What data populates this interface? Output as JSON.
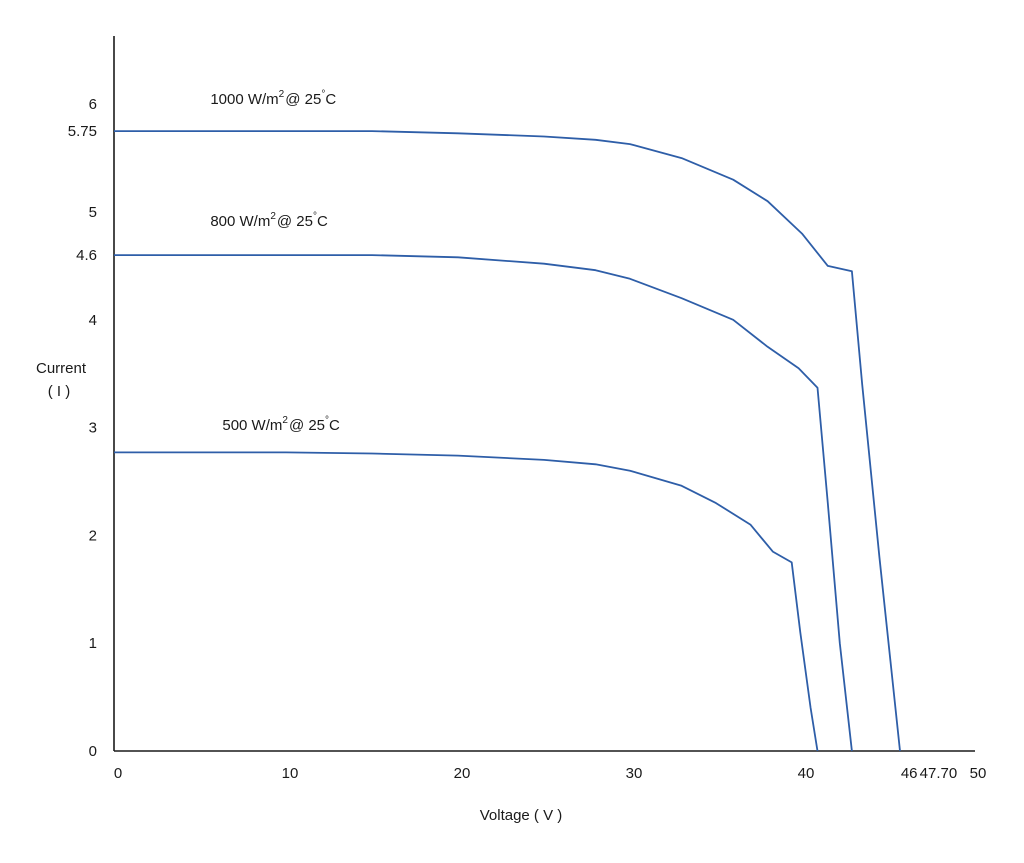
{
  "chart_data": {
    "type": "line",
    "title": "",
    "xlabel": "Voltage ( V )",
    "ylabel": [
      "Current",
      "( I )"
    ],
    "xlim": [
      0,
      50
    ],
    "ylim": [
      0,
      6.6
    ],
    "grid": false,
    "legend": "none",
    "x_ticks": [
      {
        "value": 0,
        "label": "0"
      },
      {
        "value": 10,
        "label": "10"
      },
      {
        "value": 20,
        "label": "20"
      },
      {
        "value": 30,
        "label": "30"
      },
      {
        "value": 40,
        "label": "40"
      },
      {
        "value": 46,
        "label": "46"
      },
      {
        "value": 47.7,
        "label": "47.70"
      },
      {
        "value": 50,
        "label": "50"
      }
    ],
    "y_ticks": [
      {
        "value": 0,
        "label": "0"
      },
      {
        "value": 1,
        "label": "1"
      },
      {
        "value": 2,
        "label": "2"
      },
      {
        "value": 3,
        "label": "3"
      },
      {
        "value": 4,
        "label": "4"
      },
      {
        "value": 4.6,
        "label": "4.6"
      },
      {
        "value": 5,
        "label": "5"
      },
      {
        "value": 5.75,
        "label": "5.75"
      },
      {
        "value": 6,
        "label": "6"
      }
    ],
    "series": [
      {
        "label_parts": [
          "1000 W/m",
          "2",
          "@ 25",
          "°",
          "C"
        ],
        "label_at": [
          5.6,
          6.0
        ],
        "color": "#2e5ea8",
        "points": [
          [
            0,
            5.75
          ],
          [
            5,
            5.75
          ],
          [
            10,
            5.75
          ],
          [
            15,
            5.75
          ],
          [
            20,
            5.73
          ],
          [
            25,
            5.7
          ],
          [
            28,
            5.67
          ],
          [
            30,
            5.63
          ],
          [
            33,
            5.5
          ],
          [
            36,
            5.3
          ],
          [
            38,
            5.1
          ],
          [
            40,
            4.8
          ],
          [
            41.5,
            4.5
          ],
          [
            42.9,
            4.45
          ],
          [
            43.5,
            3.4
          ],
          [
            44.5,
            1.8
          ],
          [
            45.7,
            0
          ]
        ]
      },
      {
        "label_parts": [
          "800 W/m",
          "2",
          "@ 25",
          "°",
          "C"
        ],
        "label_at": [
          5.6,
          4.87
        ],
        "color": "#2e5ea8",
        "points": [
          [
            0,
            4.6
          ],
          [
            5,
            4.6
          ],
          [
            10,
            4.6
          ],
          [
            15,
            4.6
          ],
          [
            20,
            4.58
          ],
          [
            25,
            4.52
          ],
          [
            28,
            4.46
          ],
          [
            30,
            4.38
          ],
          [
            33,
            4.2
          ],
          [
            36,
            4.0
          ],
          [
            38,
            3.75
          ],
          [
            39.8,
            3.55
          ],
          [
            40.9,
            3.37
          ],
          [
            41.5,
            2.3
          ],
          [
            42.2,
            1.0
          ],
          [
            42.9,
            0
          ]
        ]
      },
      {
        "label_parts": [
          "500 W/m",
          "2",
          "@ 25",
          "°",
          "C"
        ],
        "label_at": [
          6.3,
          2.98
        ],
        "color": "#2e5ea8",
        "points": [
          [
            0,
            2.77
          ],
          [
            5,
            2.77
          ],
          [
            10,
            2.77
          ],
          [
            15,
            2.76
          ],
          [
            20,
            2.74
          ],
          [
            25,
            2.7
          ],
          [
            28,
            2.66
          ],
          [
            30,
            2.6
          ],
          [
            33,
            2.46
          ],
          [
            35,
            2.3
          ],
          [
            37,
            2.1
          ],
          [
            38.3,
            1.85
          ],
          [
            39.4,
            1.75
          ],
          [
            39.9,
            1.1
          ],
          [
            40.5,
            0.4
          ],
          [
            40.9,
            0
          ]
        ]
      }
    ]
  }
}
